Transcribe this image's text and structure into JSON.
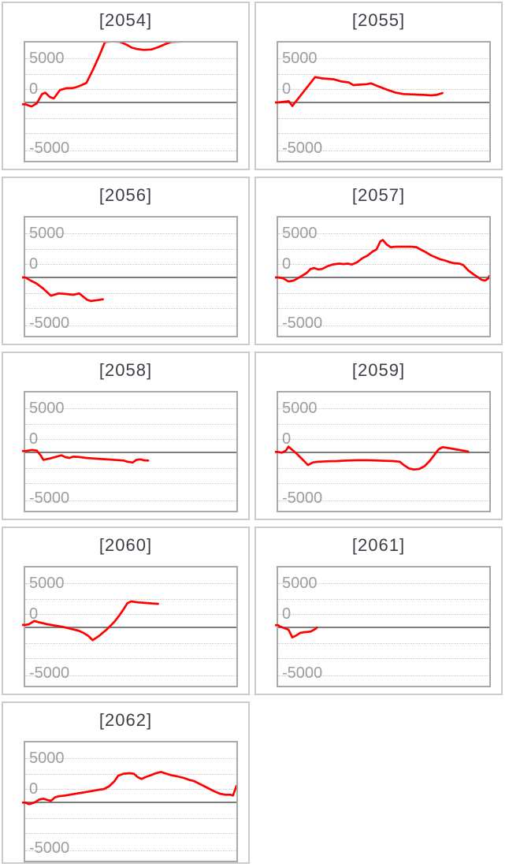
{
  "colors": {
    "background": "#ffffff",
    "card_border": "#cbcbcb",
    "plot_border": "#a9a9a9",
    "grid_dotted": "#c9c9c9",
    "zero_line": "#7d7d7d",
    "axis_label": "#9c9ca1",
    "title_text": "#3b3e45",
    "series_line": "#ff0000"
  },
  "axis": {
    "tick_labels": [
      "5000",
      "0",
      "-5000"
    ],
    "tick_values": [
      5000,
      0,
      -5000
    ],
    "ylim": [
      -6800,
      6900
    ],
    "grid_style": "dotted horizontal gridlines, solid zero line",
    "points_format": "[x_fraction_of_plot_width, value]"
  },
  "chart_data": [
    {
      "type": "line",
      "title": "[2054]",
      "points": [
        [
          0,
          -200
        ],
        [
          0.03,
          -450
        ],
        [
          0.055,
          -100
        ],
        [
          0.08,
          950
        ],
        [
          0.095,
          1100
        ],
        [
          0.117,
          600
        ],
        [
          0.135,
          450
        ],
        [
          0.165,
          1400
        ],
        [
          0.195,
          1600
        ],
        [
          0.22,
          1600
        ],
        [
          0.24,
          1700
        ],
        [
          0.267,
          1950
        ],
        [
          0.29,
          2200
        ],
        [
          0.32,
          3650
        ],
        [
          0.35,
          5200
        ],
        [
          0.378,
          6800
        ],
        [
          0.41,
          6850
        ],
        [
          0.445,
          6820
        ],
        [
          0.465,
          6650
        ],
        [
          0.483,
          6450
        ],
        [
          0.505,
          6150
        ],
        [
          0.53,
          6000
        ],
        [
          0.56,
          5900
        ],
        [
          0.597,
          5950
        ],
        [
          0.63,
          6200
        ],
        [
          0.658,
          6500
        ],
        [
          0.69,
          6800
        ],
        [
          0.75,
          6850
        ],
        [
          0.86,
          6850
        ],
        [
          1,
          6850
        ]
      ]
    },
    {
      "type": "line",
      "title": "[2055]",
      "points": [
        [
          0,
          0
        ],
        [
          0.035,
          100
        ],
        [
          0.05,
          150
        ],
        [
          0.067,
          -400
        ],
        [
          0.175,
          2850
        ],
        [
          0.21,
          2700
        ],
        [
          0.263,
          2600
        ],
        [
          0.3,
          2350
        ],
        [
          0.335,
          2250
        ],
        [
          0.356,
          1950
        ],
        [
          0.385,
          2000
        ],
        [
          0.42,
          2050
        ],
        [
          0.44,
          2150
        ],
        [
          0.47,
          1850
        ],
        [
          0.52,
          1400
        ],
        [
          0.557,
          1100
        ],
        [
          0.593,
          950
        ],
        [
          0.64,
          900
        ],
        [
          0.69,
          850
        ],
        [
          0.726,
          800
        ],
        [
          0.75,
          850
        ],
        [
          0.778,
          1050
        ]
      ]
    },
    {
      "type": "line",
      "title": "[2056]",
      "points": [
        [
          0,
          0
        ],
        [
          0.026,
          -350
        ],
        [
          0.055,
          -700
        ],
        [
          0.085,
          -1250
        ],
        [
          0.122,
          -2050
        ],
        [
          0.158,
          -1800
        ],
        [
          0.19,
          -1850
        ],
        [
          0.227,
          -1950
        ],
        [
          0.256,
          -1800
        ],
        [
          0.293,
          -2500
        ],
        [
          0.312,
          -2650
        ],
        [
          0.342,
          -2550
        ],
        [
          0.368,
          -2450
        ]
      ]
    },
    {
      "type": "line",
      "title": "[2057]",
      "points": [
        [
          0,
          0
        ],
        [
          0.024,
          -100
        ],
        [
          0.049,
          -450
        ],
        [
          0.073,
          -350
        ],
        [
          0.104,
          50
        ],
        [
          0.135,
          500
        ],
        [
          0.153,
          950
        ],
        [
          0.171,
          1050
        ],
        [
          0.19,
          900
        ],
        [
          0.208,
          950
        ],
        [
          0.233,
          1250
        ],
        [
          0.257,
          1450
        ],
        [
          0.288,
          1550
        ],
        [
          0.312,
          1500
        ],
        [
          0.33,
          1550
        ],
        [
          0.349,
          1450
        ],
        [
          0.374,
          1700
        ],
        [
          0.398,
          2150
        ],
        [
          0.423,
          2450
        ],
        [
          0.447,
          2900
        ],
        [
          0.466,
          3150
        ],
        [
          0.484,
          4050
        ],
        [
          0.496,
          4200
        ],
        [
          0.514,
          3700
        ],
        [
          0.533,
          3400
        ],
        [
          0.558,
          3450
        ],
        [
          0.594,
          3450
        ],
        [
          0.631,
          3450
        ],
        [
          0.655,
          3400
        ],
        [
          0.674,
          3150
        ],
        [
          0.698,
          2850
        ],
        [
          0.723,
          2500
        ],
        [
          0.747,
          2250
        ],
        [
          0.766,
          2050
        ],
        [
          0.79,
          1900
        ],
        [
          0.815,
          1700
        ],
        [
          0.833,
          1600
        ],
        [
          0.858,
          1550
        ],
        [
          0.876,
          1400
        ],
        [
          0.9,
          800
        ],
        [
          0.925,
          350
        ],
        [
          0.944,
          50
        ],
        [
          0.962,
          -250
        ],
        [
          0.98,
          -350
        ],
        [
          0.995,
          -100
        ],
        [
          1,
          150
        ]
      ]
    },
    {
      "type": "line",
      "title": "[2058]",
      "points": [
        [
          0,
          150
        ],
        [
          0.031,
          270
        ],
        [
          0.055,
          200
        ],
        [
          0.074,
          -350
        ],
        [
          0.086,
          -830
        ],
        [
          0.117,
          -680
        ],
        [
          0.153,
          -450
        ],
        [
          0.172,
          -330
        ],
        [
          0.19,
          -530
        ],
        [
          0.209,
          -620
        ],
        [
          0.227,
          -480
        ],
        [
          0.251,
          -500
        ],
        [
          0.288,
          -620
        ],
        [
          0.325,
          -680
        ],
        [
          0.361,
          -740
        ],
        [
          0.398,
          -800
        ],
        [
          0.435,
          -860
        ],
        [
          0.466,
          -910
        ],
        [
          0.484,
          -1040
        ],
        [
          0.509,
          -1130
        ],
        [
          0.527,
          -830
        ],
        [
          0.545,
          -780
        ],
        [
          0.564,
          -890
        ],
        [
          0.582,
          -910
        ]
      ]
    },
    {
      "type": "line",
      "title": "[2059]",
      "points": [
        [
          0,
          50
        ],
        [
          0.018,
          -30
        ],
        [
          0.037,
          200
        ],
        [
          0.049,
          650
        ],
        [
          0.067,
          270
        ],
        [
          0.086,
          -100
        ],
        [
          0.104,
          -530
        ],
        [
          0.123,
          -970
        ],
        [
          0.141,
          -1420
        ],
        [
          0.165,
          -1120
        ],
        [
          0.19,
          -1040
        ],
        [
          0.227,
          -1000
        ],
        [
          0.276,
          -970
        ],
        [
          0.325,
          -910
        ],
        [
          0.374,
          -880
        ],
        [
          0.423,
          -880
        ],
        [
          0.472,
          -910
        ],
        [
          0.509,
          -950
        ],
        [
          0.545,
          -970
        ],
        [
          0.576,
          -1040
        ],
        [
          0.595,
          -1420
        ],
        [
          0.619,
          -1800
        ],
        [
          0.643,
          -1920
        ],
        [
          0.668,
          -1860
        ],
        [
          0.692,
          -1570
        ],
        [
          0.717,
          -970
        ],
        [
          0.741,
          -240
        ],
        [
          0.76,
          350
        ],
        [
          0.779,
          590
        ],
        [
          0.803,
          500
        ],
        [
          0.839,
          350
        ],
        [
          0.876,
          200
        ],
        [
          0.9,
          100
        ]
      ]
    },
    {
      "type": "line",
      "title": "[2060]",
      "points": [
        [
          0,
          270
        ],
        [
          0.018,
          350
        ],
        [
          0.043,
          730
        ],
        [
          0.067,
          560
        ],
        [
          0.104,
          350
        ],
        [
          0.141,
          200
        ],
        [
          0.178,
          60
        ],
        [
          0.214,
          -150
        ],
        [
          0.251,
          -350
        ],
        [
          0.276,
          -620
        ],
        [
          0.3,
          -970
        ],
        [
          0.319,
          -1430
        ],
        [
          0.349,
          -970
        ],
        [
          0.386,
          -240
        ],
        [
          0.423,
          650
        ],
        [
          0.447,
          1390
        ],
        [
          0.466,
          2040
        ],
        [
          0.484,
          2720
        ],
        [
          0.502,
          2920
        ],
        [
          0.533,
          2810
        ],
        [
          0.57,
          2740
        ],
        [
          0.606,
          2680
        ],
        [
          0.629,
          2650
        ]
      ]
    },
    {
      "type": "line",
      "title": "[2061]",
      "points": [
        [
          0,
          250
        ],
        [
          0.007,
          120
        ],
        [
          0.031,
          -100
        ],
        [
          0.049,
          -250
        ],
        [
          0.067,
          -1120
        ],
        [
          0.086,
          -900
        ],
        [
          0.104,
          -620
        ],
        [
          0.123,
          -540
        ],
        [
          0.153,
          -470
        ],
        [
          0.171,
          -250
        ],
        [
          0.184,
          -30
        ]
      ]
    },
    {
      "type": "line",
      "title": "[2062]",
      "points": [
        [
          0,
          -30
        ],
        [
          0.018,
          -200
        ],
        [
          0.043,
          -30
        ],
        [
          0.067,
          330
        ],
        [
          0.086,
          420
        ],
        [
          0.104,
          270
        ],
        [
          0.122,
          180
        ],
        [
          0.141,
          570
        ],
        [
          0.158,
          680
        ],
        [
          0.19,
          770
        ],
        [
          0.227,
          920
        ],
        [
          0.263,
          1060
        ],
        [
          0.3,
          1210
        ],
        [
          0.337,
          1360
        ],
        [
          0.374,
          1500
        ],
        [
          0.398,
          1810
        ],
        [
          0.423,
          2390
        ],
        [
          0.44,
          2980
        ],
        [
          0.466,
          3220
        ],
        [
          0.496,
          3270
        ],
        [
          0.514,
          3220
        ],
        [
          0.533,
          2830
        ],
        [
          0.551,
          2630
        ],
        [
          0.569,
          2830
        ],
        [
          0.594,
          3040
        ],
        [
          0.619,
          3270
        ],
        [
          0.643,
          3420
        ],
        [
          0.668,
          3220
        ],
        [
          0.692,
          3040
        ],
        [
          0.72,
          2920
        ],
        [
          0.751,
          2740
        ],
        [
          0.775,
          2540
        ],
        [
          0.8,
          2390
        ],
        [
          0.824,
          2100
        ],
        [
          0.848,
          1810
        ],
        [
          0.873,
          1500
        ],
        [
          0.898,
          1210
        ],
        [
          0.922,
          970
        ],
        [
          0.947,
          860
        ],
        [
          0.972,
          860
        ],
        [
          0.984,
          770
        ],
        [
          1,
          1830
        ]
      ]
    }
  ]
}
